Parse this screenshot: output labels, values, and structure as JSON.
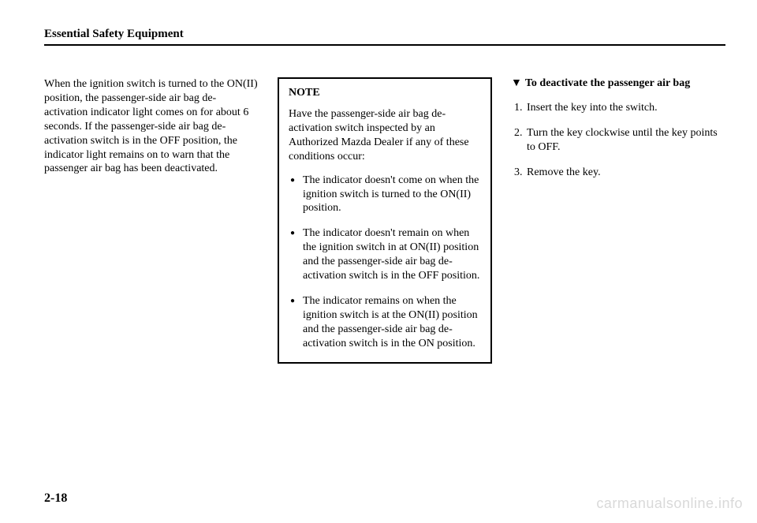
{
  "header": {
    "title": "Essential Safety Equipment"
  },
  "left": {
    "paragraph": "When the ignition switch is turned to the ON(II) position, the passenger-side air bag de-activation indicator light comes on for about 6 seconds.\nIf the passenger-side air bag de-activation switch is in the OFF position, the indicator light remains on to warn that the passenger air bag has been deactivated."
  },
  "note": {
    "title": "NOTE",
    "intro": "Have the passenger-side air bag de-activation switch inspected by an Authorized Mazda Dealer if any of these conditions occur:",
    "bullets": [
      "The indicator doesn't come on when the ignition switch is turned to the ON(II) position.",
      "The indicator doesn't remain on when the ignition switch in at ON(II) position and the passenger-side air bag de-activation switch is in the OFF position.",
      "The indicator remains on when the ignition switch is at the ON(II) position and the passenger-side air bag de-activation switch is in the ON position."
    ]
  },
  "right": {
    "heading": "To deactivate the passenger air bag",
    "steps": [
      "Insert the key into the switch.",
      "Turn the key clockwise until the key points to OFF.",
      "Remove the key."
    ]
  },
  "footer": {
    "page_number": "2-18",
    "watermark": "carmanualsonline.info"
  }
}
